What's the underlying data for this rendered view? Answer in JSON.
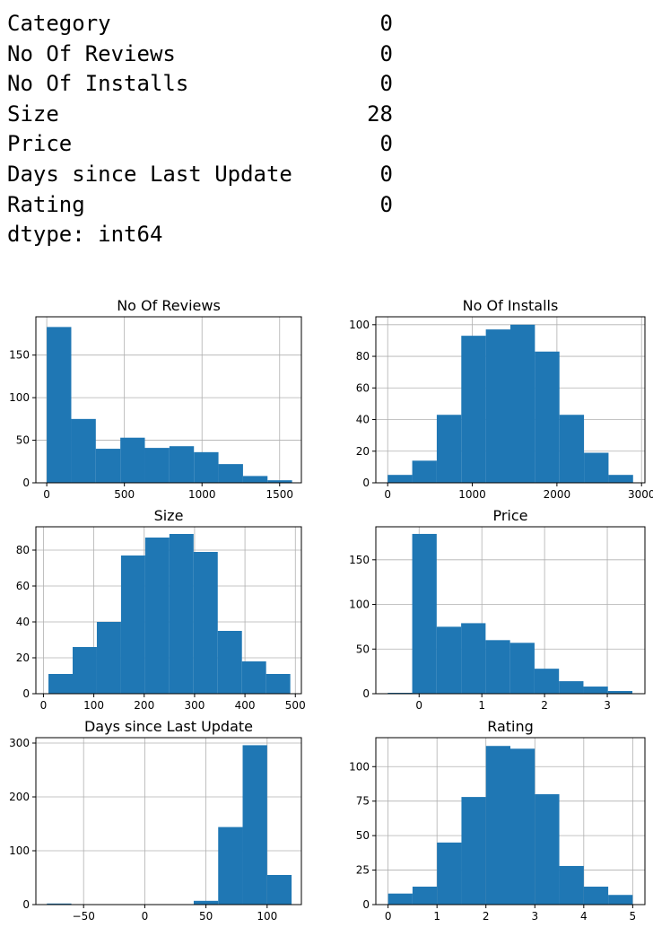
{
  "console": {
    "rows": [
      {
        "label": "Category",
        "value": "0"
      },
      {
        "label": "No Of Reviews",
        "value": "0"
      },
      {
        "label": "No Of Installs",
        "value": "0"
      },
      {
        "label": "Size",
        "value": "28"
      },
      {
        "label": "Price",
        "value": "0"
      },
      {
        "label": "Days since Last Update",
        "value": "0"
      },
      {
        "label": "Rating",
        "value": "0"
      }
    ],
    "dtype": "dtype: int64"
  },
  "colors": {
    "bar": "#1f77b4",
    "grid": "#b0b0b0",
    "axis": "#000000"
  },
  "chart_data": [
    {
      "type": "bar",
      "title": "No Of Reviews",
      "grid": true,
      "edges": [
        0,
        158,
        316,
        474,
        632,
        790,
        948,
        1106,
        1264,
        1422,
        1580
      ],
      "values": [
        183,
        75,
        40,
        53,
        41,
        43,
        36,
        22,
        8,
        3
      ],
      "xlim": [
        -70,
        1640
      ],
      "ylim": [
        0,
        195
      ],
      "xticks": [
        0,
        500,
        1000,
        1500
      ],
      "yticks": [
        0,
        50,
        100,
        150
      ]
    },
    {
      "type": "bar",
      "title": "No Of Installs",
      "grid": true,
      "edges": [
        0,
        290,
        580,
        870,
        1160,
        1450,
        1740,
        2030,
        2320,
        2610,
        2900
      ],
      "values": [
        5,
        14,
        43,
        93,
        97,
        100,
        83,
        43,
        19,
        5
      ],
      "xlim": [
        -140,
        3040
      ],
      "ylim": [
        0,
        105
      ],
      "xticks": [
        0,
        1000,
        2000,
        3000
      ],
      "yticks": [
        0,
        20,
        40,
        60,
        80,
        100
      ]
    },
    {
      "type": "bar",
      "title": "Size",
      "grid": true,
      "edges": [
        10,
        58,
        106,
        154,
        202,
        250,
        298,
        346,
        394,
        442,
        490
      ],
      "values": [
        11,
        26,
        40,
        77,
        87,
        89,
        79,
        35,
        18,
        11
      ],
      "xlim": [
        -15,
        512
      ],
      "ylim": [
        0,
        93
      ],
      "xticks": [
        0,
        100,
        200,
        300,
        400,
        500
      ],
      "yticks": [
        0,
        20,
        40,
        60,
        80
      ]
    },
    {
      "type": "bar",
      "title": "Price",
      "grid": true,
      "edges": [
        -0.5,
        -0.11,
        0.28,
        0.67,
        1.06,
        1.45,
        1.84,
        2.23,
        2.62,
        3.01,
        3.4
      ],
      "values": [
        1,
        179,
        75,
        79,
        60,
        57,
        28,
        14,
        8,
        3
      ],
      "xlim": [
        -0.69,
        3.6
      ],
      "ylim": [
        0,
        187
      ],
      "xticks": [
        0,
        1,
        2,
        3
      ],
      "yticks": [
        0,
        50,
        100,
        150
      ]
    },
    {
      "type": "bar",
      "title": "Days since Last Update",
      "grid": true,
      "edges": [
        -80,
        -60,
        -40,
        -20,
        0,
        20,
        40,
        60,
        80,
        100,
        120
      ],
      "values": [
        2,
        0,
        0,
        0,
        0,
        0,
        7,
        144,
        296,
        55
      ],
      "xlim": [
        -89,
        128
      ],
      "ylim": [
        0,
        310
      ],
      "xticks": [
        -50,
        0,
        50,
        100
      ],
      "yticks": [
        0,
        100,
        200,
        300
      ]
    },
    {
      "type": "bar",
      "title": "Rating",
      "grid": true,
      "edges": [
        0,
        0.5,
        1,
        1.5,
        2,
        2.5,
        3,
        3.5,
        4,
        4.5,
        5
      ],
      "values": [
        8,
        13,
        45,
        78,
        115,
        113,
        80,
        28,
        13,
        7
      ],
      "xlim": [
        -0.25,
        5.25
      ],
      "ylim": [
        0,
        121
      ],
      "xticks": [
        0,
        1,
        2,
        3,
        4,
        5
      ],
      "yticks": [
        0,
        25,
        50,
        75,
        100
      ]
    }
  ]
}
